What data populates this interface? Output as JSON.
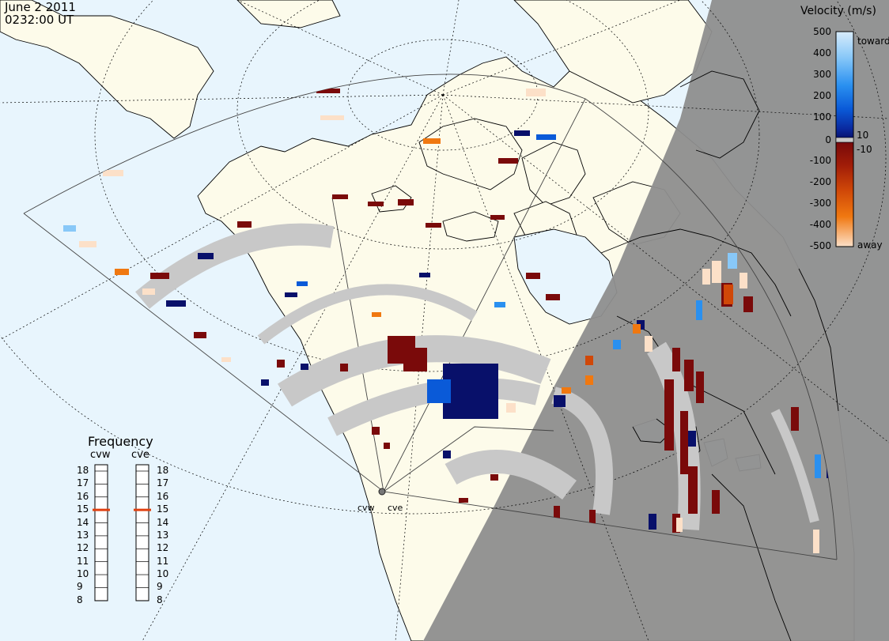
{
  "header": {
    "date": "June  2 2011",
    "time": "0232:00 UT"
  },
  "velocity_scale": {
    "title": "Velocity (m/s)",
    "ticks": [
      "500",
      "400",
      "300",
      "200",
      "100",
      "10",
      "0",
      "-10",
      "-100",
      "-200",
      "-300",
      "-400",
      "-500"
    ],
    "toward_label": "toward",
    "away_label": "away",
    "colors": [
      "#fce0c8",
      "#f8b070",
      "#f07810",
      "#d04808",
      "#a01c08",
      "#7a0a0a",
      "#c8c8c8",
      "#08106a",
      "#0a2aa0",
      "#0a5ad8",
      "#2a90f0",
      "#88c8f8",
      "#d8ecfc"
    ]
  },
  "frequency": {
    "title": "Frequency",
    "radars": [
      {
        "name": "cvw",
        "value": 15
      },
      {
        "name": "cve",
        "value": 15
      }
    ],
    "ticks": [
      "18",
      "17",
      "16",
      "15",
      "14",
      "13",
      "12",
      "11",
      "10",
      "9",
      "8"
    ]
  },
  "sites": {
    "west": "cvw",
    "east": "cve"
  },
  "colors": {
    "ocean": "#e8f5fd",
    "land": "#fdfbea",
    "night": "#8e8e8e",
    "ground_scatter": "#c8c8c8",
    "freq_marker": "#e04010"
  }
}
